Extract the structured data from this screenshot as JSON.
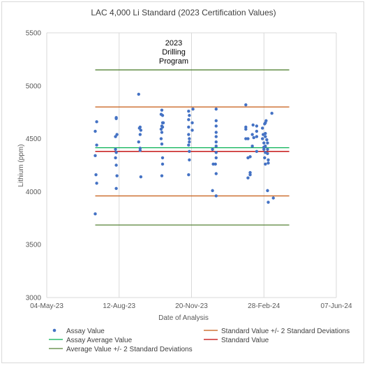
{
  "chart_data": {
    "type": "scatter",
    "title": "LAC 4,000 Li Standard (2023 Certification Values)",
    "xlabel": "Date of Analysis",
    "ylabel": "Lithium (ppm)",
    "ylim": [
      3000,
      5500
    ],
    "yticks": [
      "3000",
      "3500",
      "4000",
      "4500",
      "5000",
      "5500"
    ],
    "xlim": [
      "2023-05-04",
      "2024-06-07"
    ],
    "xticks": [
      {
        "date": "2023-05-04",
        "label": "04-May-23"
      },
      {
        "date": "2023-08-12",
        "label": "12-Aug-23"
      },
      {
        "date": "2023-11-20",
        "label": "20-Nov-23"
      },
      {
        "date": "2024-02-28",
        "label": "28-Feb-24"
      },
      {
        "date": "2024-06-07",
        "label": "07-Jun-24"
      }
    ],
    "grid": "vertical",
    "annotation": {
      "lines": [
        "2023",
        "Drilling",
        "Program"
      ]
    },
    "reference_lines": {
      "average_plus_2sd": {
        "y": 5150,
        "color": "#548235"
      },
      "standard_plus_2sd": {
        "y": 4800,
        "color": "#c55a11"
      },
      "assay_average": {
        "y": 4415,
        "color": "#00b050"
      },
      "standard_value": {
        "y": 4380,
        "color": "#c00000"
      },
      "standard_minus_2sd": {
        "y": 3960,
        "color": "#c55a11"
      },
      "average_minus_2sd": {
        "y": 3685,
        "color": "#548235"
      },
      "x_start": "2023-07-10",
      "x_end": "2024-04-03"
    },
    "series": [
      {
        "name": "Assay Value",
        "color": "#4472c4",
        "points": [
          [
            "2023-07-10",
            3790
          ],
          [
            "2023-07-10",
            4570
          ],
          [
            "2023-07-10",
            4340
          ],
          [
            "2023-07-11",
            4160
          ],
          [
            "2023-07-12",
            4660
          ],
          [
            "2023-07-12",
            4440
          ],
          [
            "2023-07-12",
            4080
          ],
          [
            "2023-08-07",
            4520
          ],
          [
            "2023-08-08",
            4690
          ],
          [
            "2023-08-08",
            4700
          ],
          [
            "2023-08-07",
            4400
          ],
          [
            "2023-08-08",
            4370
          ],
          [
            "2023-08-07",
            4320
          ],
          [
            "2023-08-08",
            4250
          ],
          [
            "2023-08-09",
            4150
          ],
          [
            "2023-08-09",
            4540
          ],
          [
            "2023-08-08",
            4030
          ],
          [
            "2023-09-08",
            4920
          ],
          [
            "2023-09-09",
            4600
          ],
          [
            "2023-09-08",
            4470
          ],
          [
            "2023-09-10",
            4410
          ],
          [
            "2023-09-10",
            4390
          ],
          [
            "2023-09-10",
            4610
          ],
          [
            "2023-09-11",
            4580
          ],
          [
            "2023-09-10",
            4540
          ],
          [
            "2023-09-11",
            4140
          ],
          [
            "2023-10-09",
            4730
          ],
          [
            "2023-10-10",
            4770
          ],
          [
            "2023-10-11",
            4720
          ],
          [
            "2023-10-11",
            4650
          ],
          [
            "2023-10-10",
            4620
          ],
          [
            "2023-10-11",
            4610
          ],
          [
            "2023-10-09",
            4590
          ],
          [
            "2023-10-10",
            4560
          ],
          [
            "2023-10-09",
            4500
          ],
          [
            "2023-10-10",
            4450
          ],
          [
            "2023-10-11",
            4320
          ],
          [
            "2023-10-11",
            4260
          ],
          [
            "2023-10-10",
            4150
          ],
          [
            "2023-10-12",
            4650
          ],
          [
            "2023-11-16",
            4760
          ],
          [
            "2023-11-17",
            4720
          ],
          [
            "2023-11-16",
            4680
          ],
          [
            "2023-11-16",
            4610
          ],
          [
            "2023-11-16",
            4540
          ],
          [
            "2023-11-17",
            4500
          ],
          [
            "2023-11-17",
            4470
          ],
          [
            "2023-11-16",
            4440
          ],
          [
            "2023-11-17",
            4380
          ],
          [
            "2023-11-17",
            4300
          ],
          [
            "2023-11-16",
            4160
          ],
          [
            "2023-11-22",
            4780
          ],
          [
            "2023-11-21",
            4580
          ],
          [
            "2023-11-21",
            4650
          ],
          [
            "2023-12-19",
            4400
          ],
          [
            "2023-12-19",
            4010
          ],
          [
            "2023-12-20",
            4260
          ],
          [
            "2023-12-24",
            4780
          ],
          [
            "2023-12-24",
            4670
          ],
          [
            "2023-12-24",
            4620
          ],
          [
            "2023-12-24",
            4560
          ],
          [
            "2023-12-24",
            4520
          ],
          [
            "2023-12-24",
            4470
          ],
          [
            "2023-12-24",
            4430
          ],
          [
            "2023-12-24",
            4370
          ],
          [
            "2023-12-24",
            4320
          ],
          [
            "2023-12-23",
            4260
          ],
          [
            "2023-12-24",
            4170
          ],
          [
            "2023-12-24",
            3960
          ],
          [
            "2024-02-03",
            4820
          ],
          [
            "2024-02-03",
            4610
          ],
          [
            "2024-02-03",
            4590
          ],
          [
            "2024-02-03",
            4500
          ],
          [
            "2024-02-06",
            4500
          ],
          [
            "2024-02-06",
            4320
          ],
          [
            "2024-02-06",
            4130
          ],
          [
            "2024-02-09",
            4330
          ],
          [
            "2024-02-09",
            4180
          ],
          [
            "2024-02-09",
            4160
          ],
          [
            "2024-02-13",
            4630
          ],
          [
            "2024-02-12",
            4540
          ],
          [
            "2024-02-12",
            4430
          ],
          [
            "2024-02-14",
            4510
          ],
          [
            "2024-02-18",
            4620
          ],
          [
            "2024-02-18",
            4570
          ],
          [
            "2024-02-18",
            4520
          ],
          [
            "2024-02-18",
            4380
          ],
          [
            "2024-02-26",
            4600
          ],
          [
            "2024-02-27",
            4540
          ],
          [
            "2024-02-26",
            4500
          ],
          [
            "2024-02-28",
            4460
          ],
          [
            "2024-03-01",
            4650
          ],
          [
            "2024-03-02",
            4670
          ],
          [
            "2024-02-29",
            4640
          ],
          [
            "2024-03-01",
            4550
          ],
          [
            "2024-03-01",
            4520
          ],
          [
            "2024-02-28",
            4400
          ],
          [
            "2024-03-01",
            4430
          ],
          [
            "2024-03-01",
            4370
          ],
          [
            "2024-02-29",
            4320
          ],
          [
            "2024-03-01",
            4260
          ],
          [
            "2024-02-28",
            4420
          ],
          [
            "2024-03-03",
            4490
          ],
          [
            "2024-03-04",
            4460
          ],
          [
            "2024-03-04",
            4400
          ],
          [
            "2024-03-04",
            4360
          ],
          [
            "2024-03-05",
            4300
          ],
          [
            "2024-03-05",
            4270
          ],
          [
            "2024-03-04",
            4010
          ],
          [
            "2024-03-05",
            3900
          ],
          [
            "2024-03-10",
            4740
          ],
          [
            "2024-03-12",
            3940
          ]
        ]
      }
    ],
    "legend": {
      "position": "bottom",
      "items": [
        {
          "label": "Assay Value",
          "type": "marker",
          "color": "#4472c4"
        },
        {
          "label": "Standard Value +/- 2 Standard Deviations",
          "type": "line",
          "color": "#c55a11"
        },
        {
          "label": "Assay Average Value",
          "type": "line",
          "color": "#00b050"
        },
        {
          "label": "Standard Value",
          "type": "line",
          "color": "#c00000"
        },
        {
          "label": "Average Value +/- 2 Standard Deviations",
          "type": "line",
          "color": "#548235"
        }
      ]
    }
  }
}
